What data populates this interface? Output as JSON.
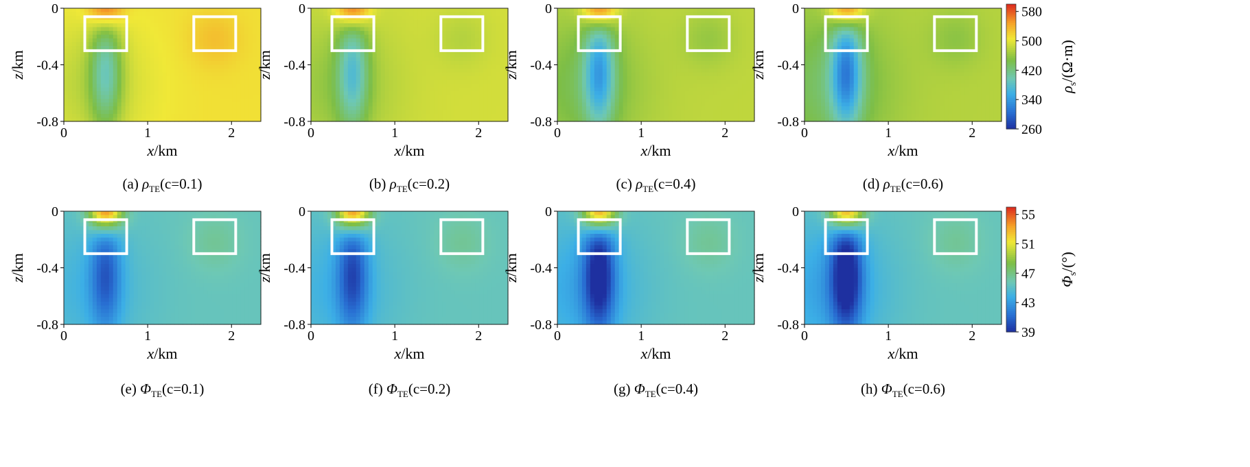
{
  "figure": {
    "caption_suffix": "TE",
    "rows": [
      {
        "symbol": "ρ",
        "captions": [
          {
            "prefix": "(a) ",
            "param": "(c=0.1)"
          },
          {
            "prefix": "(b) ",
            "param": "(c=0.2)"
          },
          {
            "prefix": "(c) ",
            "param": "(c=0.4)"
          },
          {
            "prefix": "(d) ",
            "param": "(c=0.6)"
          }
        ],
        "colorbar": {
          "label_symbol": "ρ",
          "label_sub": "s",
          "label_unit": "/(Ω·m)",
          "ticks": [
            "580",
            "500",
            "420",
            "340",
            "260"
          ],
          "range": [
            260,
            600
          ]
        }
      },
      {
        "symbol": "Φ",
        "captions": [
          {
            "prefix": "(e) ",
            "param": "(c=0.1)"
          },
          {
            "prefix": "(f) ",
            "param": "(c=0.2)"
          },
          {
            "prefix": "(g) ",
            "param": "(c=0.4)"
          },
          {
            "prefix": "(h) ",
            "param": "(c=0.6)"
          }
        ],
        "colorbar": {
          "label_symbol": "Φ",
          "label_sub": "s",
          "label_unit": "/(°)",
          "ticks": [
            "55",
            "51",
            "47",
            "43",
            "39"
          ],
          "range": [
            39,
            56
          ]
        }
      }
    ],
    "axes": {
      "xlabel_var": "x",
      "xlabel_unit": "/km",
      "ylabel_var": "z",
      "ylabel_unit": "/km",
      "xticks": [
        "0",
        "1",
        "2"
      ],
      "yticks": [
        "0",
        "-0.4",
        "-0.8"
      ]
    }
  },
  "chart_data": {
    "type": "heatmap",
    "xlim": [
      0,
      2.35
    ],
    "ylim": [
      -0.8,
      0
    ],
    "xticks": [
      0,
      1,
      2
    ],
    "yticks": [
      0,
      -0.4,
      -0.8
    ],
    "boxes_km": [
      {
        "x": [
          0.25,
          0.75
        ],
        "z": [
          -0.3,
          -0.06
        ]
      },
      {
        "x": [
          1.55,
          2.05
        ],
        "z": [
          -0.3,
          -0.06
        ]
      }
    ],
    "panels": [
      {
        "id": "a",
        "quantity": "rho_TE",
        "c": 0.1,
        "background": 510,
        "near": 590,
        "deep": 420,
        "far_anomaly": 530
      },
      {
        "id": "b",
        "quantity": "rho_TE",
        "c": 0.2,
        "background": 490,
        "near": 590,
        "deep": 400,
        "far_anomaly": 475
      },
      {
        "id": "c",
        "quantity": "rho_TE",
        "c": 0.4,
        "background": 480,
        "near": 590,
        "deep": 370,
        "far_anomaly": 460
      },
      {
        "id": "d",
        "quantity": "rho_TE",
        "c": 0.6,
        "background": 475,
        "near": 590,
        "deep": 350,
        "far_anomaly": 455
      },
      {
        "id": "e",
        "quantity": "phi_TE",
        "c": 0.1,
        "background": 45.5,
        "near": 55,
        "deep": 41.5,
        "far_anomaly": 46.5
      },
      {
        "id": "f",
        "quantity": "phi_TE",
        "c": 0.2,
        "background": 45.5,
        "near": 55,
        "deep": 41,
        "far_anomaly": 46.5
      },
      {
        "id": "g",
        "quantity": "phi_TE",
        "c": 0.4,
        "background": 45.5,
        "near": 55,
        "deep": 39.5,
        "far_anomaly": 46.5
      },
      {
        "id": "h",
        "quantity": "phi_TE",
        "c": 0.6,
        "background": 45.5,
        "near": 55,
        "deep": 39,
        "far_anomaly": 46.5
      }
    ]
  }
}
